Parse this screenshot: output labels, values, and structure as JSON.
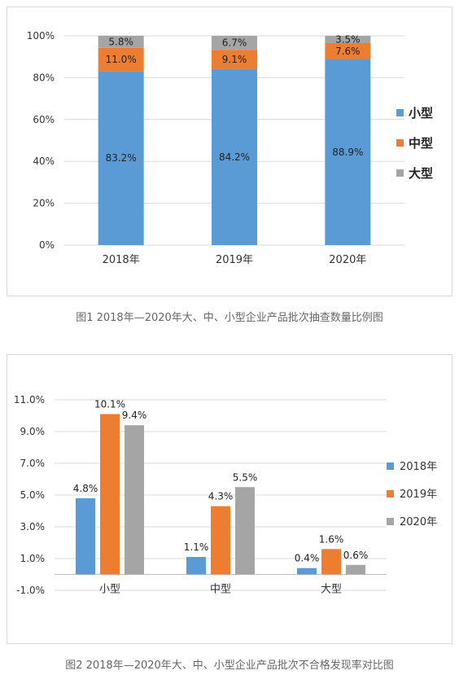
{
  "charts": [
    {
      "type": "bar",
      "stacked": true,
      "categories": [
        "2018年",
        "2019年",
        "2020年"
      ],
      "series": [
        {
          "name": "小型",
          "values": [
            83.2,
            84.2,
            88.9
          ],
          "labels": [
            "83.2%",
            "84.2%",
            "88.9%"
          ],
          "color": "#5b9bd5"
        },
        {
          "name": "中型",
          "values": [
            11.0,
            9.1,
            7.6
          ],
          "labels": [
            "11.0%",
            "9.1%",
            "7.6%"
          ],
          "color": "#ed7d31"
        },
        {
          "name": "大型",
          "values": [
            5.8,
            6.7,
            3.5
          ],
          "labels": [
            "5.8%",
            "6.7%",
            "3.5%"
          ],
          "color": "#a5a5a5"
        }
      ],
      "yticks": [
        "0%",
        "20%",
        "40%",
        "60%",
        "80%",
        "100%"
      ],
      "ylim": [
        0,
        100
      ],
      "legend": "right",
      "grid": true
    },
    {
      "type": "bar",
      "stacked": false,
      "categories": [
        "小型",
        "中型",
        "大型"
      ],
      "series": [
        {
          "name": "2018年",
          "values": [
            4.8,
            1.1,
            0.4
          ],
          "labels": [
            "4.8%",
            "1.1%",
            "0.4%"
          ],
          "color": "#5b9bd5"
        },
        {
          "name": "2019年",
          "values": [
            10.1,
            4.3,
            1.6
          ],
          "labels": [
            "10.1%",
            "4.3%",
            "1.6%"
          ],
          "color": "#ed7d31"
        },
        {
          "name": "2020年",
          "values": [
            9.4,
            5.5,
            0.6
          ],
          "labels": [
            "9.4%",
            "5.5%",
            "0.6%"
          ],
          "color": "#a5a5a5"
        }
      ],
      "yticks": [
        "-1.0%",
        "1.0%",
        "3.0%",
        "5.0%",
        "7.0%",
        "9.0%",
        "11.0%"
      ],
      "ylim": [
        -1,
        11
      ],
      "legend": "right",
      "grid": true
    }
  ],
  "captions": {
    "fig1": "图1 2018年—2020年大、中、小型企业产品批次抽查数量比例图",
    "fig2": "图2 2018年—2020年大、中、小型企业产品批次不合格发现率对比图"
  }
}
